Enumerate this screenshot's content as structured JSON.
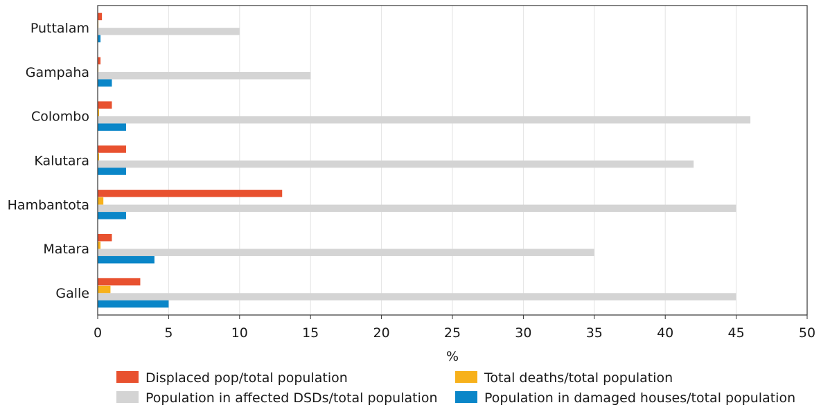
{
  "chart_data": {
    "type": "bar",
    "orientation": "horizontal",
    "categories": [
      "Puttalam",
      "Gampaha",
      "Colombo",
      "Kalutara",
      "Hambantota",
      "Matara",
      "Galle"
    ],
    "series": [
      {
        "name": "Displaced pop/total population",
        "color": "#e8512f",
        "values": [
          0.3,
          0.2,
          1.0,
          2.0,
          13.0,
          1.0,
          3.0
        ]
      },
      {
        "name": "Total deaths/total population",
        "color": "#f7b11b",
        "values": [
          0.05,
          0.05,
          0.1,
          0.1,
          0.4,
          0.2,
          0.9
        ]
      },
      {
        "name": "Population in affected DSDs/total population",
        "color": "#d4d4d4",
        "values": [
          10,
          15,
          46,
          42,
          45,
          35,
          45
        ]
      },
      {
        "name": "Population in damaged houses/total population",
        "color": "#0a86c8",
        "values": [
          0.2,
          1.0,
          2.0,
          2.0,
          2.0,
          4.0,
          5.0
        ]
      }
    ],
    "xlim": [
      0,
      50
    ],
    "xticks": [
      "0",
      "5",
      "10",
      "15",
      "20",
      "25",
      "30",
      "35",
      "40",
      "45",
      "50"
    ],
    "xlabel": "%",
    "ylabel": "",
    "title": "",
    "grid": "vertical",
    "legend_position": "bottom"
  }
}
